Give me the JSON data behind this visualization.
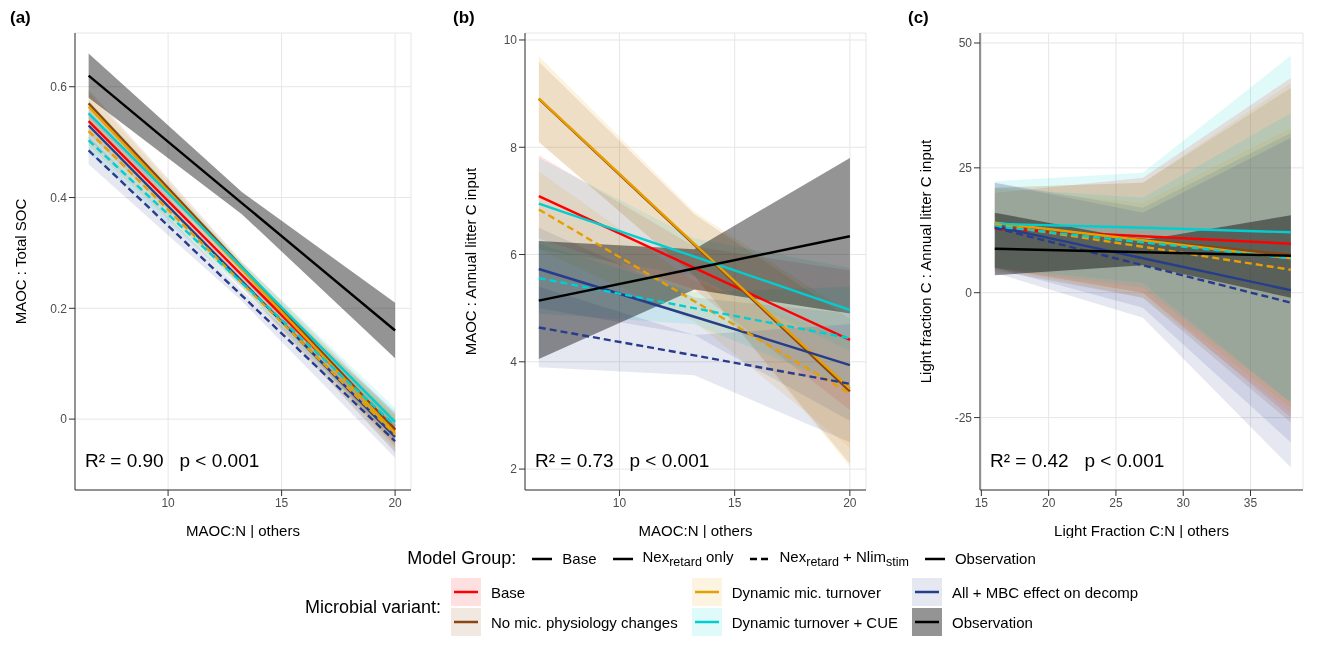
{
  "chart_data": [
    {
      "type": "line",
      "title": "(a)",
      "xlabel": "MAOC:N | others",
      "ylabel": "MAOC : Total SOC",
      "annotations": [
        "R² = 0.90   p < 0.001"
      ],
      "xlim": [
        5.9,
        20.7
      ],
      "ylim": [
        -0.128,
        0.697
      ],
      "xticks": [
        10,
        15,
        20
      ],
      "yticks": [
        0.0,
        0.2,
        0.4,
        0.6
      ],
      "grid": true,
      "x": [
        6.5,
        13.25,
        20
      ],
      "series": [
        {
          "color": "#ff0000",
          "values": [
            0.538,
            0.26,
            -0.018
          ],
          "lower": [
            0.515,
            0.25,
            -0.045
          ],
          "upper": [
            0.56,
            0.27,
            0.01
          ]
        },
        {
          "color": "#8b4513",
          "values": [
            0.57,
            0.275,
            -0.02
          ],
          "lower": [
            0.545,
            0.265,
            -0.05
          ],
          "upper": [
            0.595,
            0.285,
            0.01
          ]
        },
        {
          "color": "#e69f00",
          "values": [
            0.564,
            0.27,
            -0.025
          ],
          "lower": [
            0.54,
            0.26,
            -0.055
          ],
          "upper": [
            0.59,
            0.28,
            0.005
          ]
        },
        {
          "color": "#00ced1",
          "values": [
            0.552,
            0.274,
            -0.005
          ],
          "lower": [
            0.53,
            0.265,
            -0.03
          ],
          "upper": [
            0.575,
            0.283,
            0.02
          ]
        },
        {
          "color": "#263d8c",
          "values": [
            0.53,
            0.249,
            -0.032
          ],
          "lower": [
            0.505,
            0.24,
            -0.06
          ],
          "upper": [
            0.555,
            0.258,
            -0.005
          ]
        },
        {
          "color": "#e69e02",
          "line_style": "dashed",
          "values": [
            0.52,
            0.246,
            -0.028
          ],
          "lower": [
            0.495,
            0.236,
            -0.06
          ],
          "upper": [
            0.545,
            0.256,
            0.005
          ]
        },
        {
          "color": "#02cdd0",
          "line_style": "dashed",
          "values": [
            0.503,
            0.246,
            -0.012
          ],
          "lower": [
            0.48,
            0.237,
            -0.04
          ],
          "upper": [
            0.525,
            0.255,
            0.015
          ]
        },
        {
          "color": "#283c8b",
          "line_style": "dashed",
          "values": [
            0.485,
            0.223,
            -0.04
          ],
          "lower": [
            0.46,
            0.213,
            -0.07
          ],
          "upper": [
            0.51,
            0.232,
            -0.01
          ]
        },
        {
          "color": "#000000",
          "values": [
            0.62,
            0.39,
            0.16
          ],
          "lower": [
            0.58,
            0.37,
            0.11
          ],
          "upper": [
            0.66,
            0.41,
            0.21
          ]
        }
      ]
    },
    {
      "type": "line",
      "title": "(b)",
      "xlabel": "MAOC:N | others",
      "ylabel": "MAOC : Annual litter C input",
      "annotations": [
        "R² = 0.73   p < 0.001"
      ],
      "xlim": [
        5.9,
        20.7
      ],
      "ylim": [
        1.61,
        10.13
      ],
      "xticks": [
        10,
        15,
        20
      ],
      "yticks": [
        2,
        4,
        6,
        8,
        10
      ],
      "grid": true,
      "x": [
        6.5,
        13.25,
        20
      ],
      "legend": "bottom",
      "legend_title": "Microbial variant:",
      "series": [
        {
          "name": "Base",
          "color": "#ff0000",
          "values": [
            7.09,
            5.75,
            4.41
          ],
          "lower": [
            6.3,
            5.35,
            3.1
          ],
          "upper": [
            7.85,
            6.15,
            5.7
          ]
        },
        {
          "name": "No mic. physiology changes",
          "color": "#8b4513",
          "values": [
            8.9,
            6.18,
            3.45
          ],
          "lower": [
            8.1,
            5.6,
            2.1
          ],
          "upper": [
            9.6,
            6.75,
            4.8
          ]
        },
        {
          "name": "Dynamic mic. turnover",
          "color": "#e69f00",
          "values": [
            8.91,
            6.2,
            3.5
          ],
          "lower": [
            8.1,
            5.6,
            2.05
          ],
          "upper": [
            9.7,
            6.8,
            4.9
          ]
        },
        {
          "name": "Dynamic turnover + CUE",
          "color": "#00ced1",
          "values": [
            6.95,
            5.96,
            4.97
          ],
          "lower": [
            6.1,
            5.6,
            4.2
          ],
          "upper": [
            7.8,
            6.3,
            5.75
          ]
        },
        {
          "name": "All + MBC effect on decomp",
          "color": "#263d8c",
          "values": [
            5.73,
            4.84,
            3.94
          ],
          "lower": [
            5.0,
            4.5,
            2.9
          ],
          "upper": [
            6.5,
            5.2,
            4.9
          ]
        },
        {
          "color": "#e69e02",
          "line_style": "dashed",
          "values": [
            6.84,
            5.13,
            3.41
          ],
          "lower": [
            6.1,
            4.75,
            2.4
          ],
          "upper": [
            7.55,
            5.5,
            4.4
          ]
        },
        {
          "color": "#02cdd0",
          "line_style": "dashed",
          "values": [
            5.56,
            5.0,
            4.44
          ],
          "lower": [
            4.9,
            4.7,
            3.5
          ],
          "upper": [
            6.2,
            5.3,
            5.4
          ]
        },
        {
          "color": "#283c8b",
          "line_style": "dashed",
          "values": [
            4.64,
            4.12,
            3.59
          ],
          "lower": [
            3.9,
            3.75,
            2.5
          ],
          "upper": [
            5.4,
            4.5,
            4.7
          ]
        },
        {
          "name": "Observation",
          "color": "#000000",
          "values": [
            5.14,
            5.74,
            6.34
          ],
          "lower": [
            4.05,
            5.35,
            4.9
          ],
          "upper": [
            6.25,
            6.1,
            7.8
          ]
        }
      ]
    },
    {
      "type": "line",
      "title": "(c)",
      "xlabel": "Light Fraction C:N | others",
      "ylabel": "Light fraction C : Annual litter C input",
      "annotations": [
        "R² = 0.42   p < 0.001"
      ],
      "xlim": [
        14.9,
        38.9
      ],
      "ylim": [
        -39.5,
        52
      ],
      "xticks": [
        15,
        20,
        25,
        30,
        35
      ],
      "yticks": [
        -25,
        0,
        25,
        50
      ],
      "grid": true,
      "x": [
        16,
        27,
        38
      ],
      "series": [
        {
          "color": "#ff0000",
          "values": [
            12.8,
            11.3,
            9.8
          ],
          "lower": [
            5,
            0,
            -25
          ],
          "upper": [
            20,
            23,
            43
          ]
        },
        {
          "color": "#8b4513",
          "values": [
            13.7,
            10.6,
            7.6
          ],
          "lower": [
            4.5,
            -1,
            -26
          ],
          "upper": [
            21,
            22,
            41
          ]
        },
        {
          "color": "#e69f00",
          "values": [
            14.0,
            10.5,
            6.9
          ],
          "lower": [
            5,
            -1,
            -24
          ],
          "upper": [
            21,
            22,
            42
          ]
        },
        {
          "color": "#00ced1",
          "values": [
            13.8,
            13.0,
            12.1
          ],
          "lower": [
            5,
            2,
            -22
          ],
          "upper": [
            22.3,
            24,
            47.5
          ]
        },
        {
          "color": "#263d8c",
          "values": [
            13.3,
            6.9,
            0.5
          ],
          "lower": [
            5,
            -3,
            -30
          ],
          "upper": [
            22,
            17,
            32
          ]
        },
        {
          "color": "#e69e02",
          "line_style": "dashed",
          "values": [
            13.7,
            9.2,
            4.6
          ],
          "lower": [
            5,
            0,
            -23
          ],
          "upper": [
            21,
            18,
            33
          ]
        },
        {
          "color": "#02cdd0",
          "line_style": "dashed",
          "values": [
            13.3,
            10.1,
            6.9
          ],
          "lower": [
            5,
            1,
            -22
          ],
          "upper": [
            21,
            19,
            36
          ]
        },
        {
          "color": "#283c8b",
          "line_style": "dashed",
          "values": [
            13.0,
            5.5,
            -2.0
          ],
          "lower": [
            4,
            -5,
            -35
          ],
          "upper": [
            22,
            16,
            31
          ]
        },
        {
          "color": "#000000",
          "values": [
            8.8,
            8.1,
            7.4
          ],
          "lower": [
            3.5,
            5.5,
            -1
          ],
          "upper": [
            16,
            10.5,
            15.5
          ]
        }
      ]
    },
    {
      "type": "other",
      "legend": "bottom",
      "legend_title": "Model Group:",
      "series": [
        {
          "name": "Base",
          "color": "#000000",
          "line_style": "solid"
        },
        {
          "name": "Nex$_{retard}$ only",
          "color": "#000000",
          "line_style": "solid"
        },
        {
          "name": "Nex$_{retard}$ + Nlim$_{stim}$",
          "color": "#000000",
          "line_style": "dashed"
        },
        {
          "name": "Observation",
          "color": "#000000",
          "line_style": "solid"
        }
      ]
    }
  ]
}
